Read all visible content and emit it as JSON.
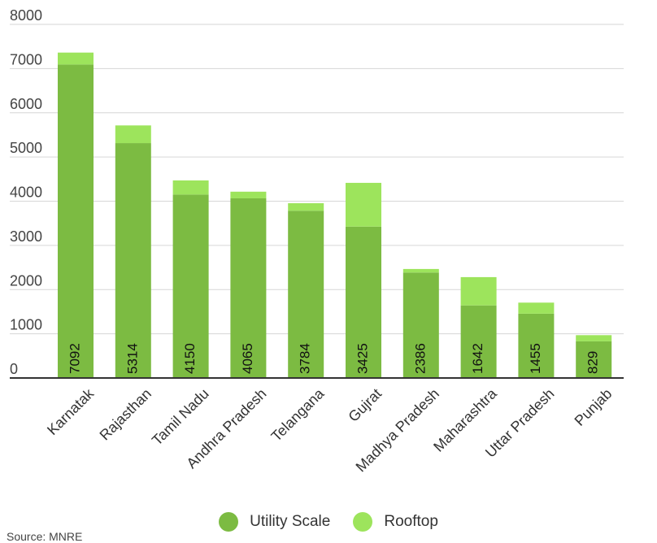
{
  "chart_data": {
    "type": "bar",
    "stacked": true,
    "title": "",
    "xlabel": "",
    "ylabel": "",
    "ylim": [
      0,
      8000
    ],
    "yticks": [
      0,
      1000,
      2000,
      3000,
      4000,
      5000,
      6000,
      7000,
      8000
    ],
    "grid": true,
    "legend_position": "bottom",
    "categories": [
      "Karnatak",
      "Rajasthan",
      "Tamil Nadu",
      "Andhra Pradesh",
      "Telangana",
      "Gujrat",
      "Madhya Pradesh",
      "Maharashtra",
      "Uttar Pradesh",
      "Punjab"
    ],
    "series": [
      {
        "name": "Utility Scale",
        "color": "#7cbb42",
        "values": [
          7092,
          5314,
          4150,
          4065,
          3784,
          3425,
          2386,
          1642,
          1455,
          829
        ],
        "labels": [
          "7092",
          "5314",
          "4150",
          "4065",
          "3784",
          "3425",
          "2386",
          "1642",
          "1455",
          "829"
        ]
      },
      {
        "name": "Rooftop",
        "color": "#9de45c",
        "values": [
          270,
          400,
          320,
          150,
          170,
          990,
          80,
          640,
          250,
          140
        ]
      }
    ]
  },
  "legend": {
    "items": [
      {
        "label": "Utility Scale"
      },
      {
        "label": "Rooftop"
      }
    ]
  },
  "source": "Source: MNRE"
}
